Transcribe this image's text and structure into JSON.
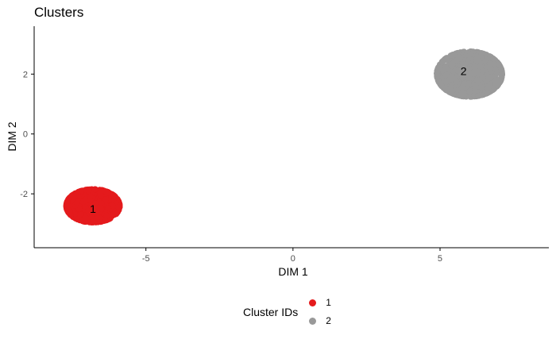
{
  "chart_data": {
    "type": "scatter",
    "title": "Clusters",
    "xlabel": "DIM 1",
    "ylabel": "DIM 2",
    "xlim": [
      -8.8,
      8.7
    ],
    "ylim": [
      -3.8,
      3.6
    ],
    "x_ticks": [
      -5,
      0,
      5
    ],
    "y_ticks": [
      -2,
      0,
      2
    ],
    "grid": false,
    "legend": {
      "title": "Cluster IDs",
      "position": "bottom"
    },
    "series": [
      {
        "name": "1",
        "color": "#E41A1C",
        "center": [
          -6.8,
          -2.4
        ],
        "spread": [
          0.9,
          0.55
        ],
        "label_at": [
          -6.8,
          -2.5
        ]
      },
      {
        "name": "2",
        "color": "#999999",
        "center": [
          6.0,
          2.0
        ],
        "spread": [
          1.1,
          0.75
        ],
        "label_at": [
          5.8,
          2.1
        ]
      }
    ]
  }
}
